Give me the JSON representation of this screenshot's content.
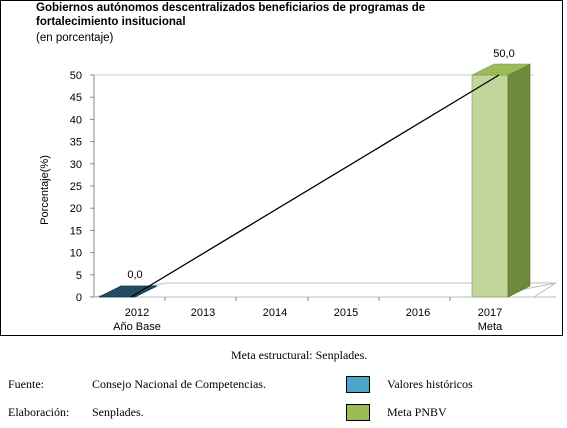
{
  "chart_data": {
    "type": "bar",
    "title": "Gobiernos autónomos descentralizados beneficiarios de programas de fortalecimiento insitucional",
    "subtitle": "(en porcentaje)",
    "ylabel": "Porcentaje(%)",
    "ylim": [
      0,
      50
    ],
    "yticks": [
      "0",
      "5",
      "10",
      "15",
      "20",
      "25",
      "30",
      "35",
      "40",
      "45",
      "50"
    ],
    "categories": [
      "2012",
      "2013",
      "2014",
      "2015",
      "2016",
      "2017"
    ],
    "category_sublabels": [
      "Año Base",
      "",
      "",
      "",
      "",
      "Meta"
    ],
    "series": [
      {
        "name": "Valores históricos",
        "values": [
          0.0,
          null,
          null,
          null,
          null,
          null
        ],
        "labels": [
          "0,0",
          "",
          "",
          "",
          "",
          ""
        ],
        "color": "#1f4e63"
      },
      {
        "name": "Meta PNBV",
        "values": [
          null,
          null,
          null,
          null,
          null,
          50.0
        ],
        "labels": [
          "",
          "",
          "",
          "",
          "",
          "50,0"
        ],
        "color": "#9bbb59"
      }
    ],
    "trend_line": {
      "from_category": "2012",
      "from_value": 0.0,
      "to_category": "2017",
      "to_value": 50.0
    }
  },
  "footer": {
    "caption": "Meta estructural: Senplades.",
    "fuente_label": "Fuente:",
    "fuente_value": "Consejo Nacional de Competencias.",
    "elaboracion_label": "Elaboración:",
    "elaboracion_value": "Senplades.",
    "legend_hist": "Valores históricos",
    "legend_meta": "Meta PNBV"
  }
}
